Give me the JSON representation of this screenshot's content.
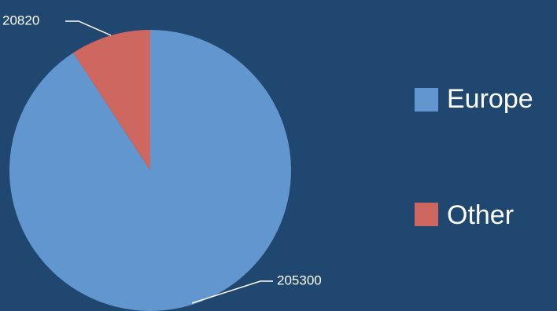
{
  "colors": {
    "background": "#1f4770",
    "europe": "#6196cf",
    "other": "#ce6760"
  },
  "chart_data": {
    "type": "pie",
    "categories": [
      "Europe",
      "Other"
    ],
    "values": [
      205300,
      20820
    ],
    "data_labels": [
      "205300",
      "20820"
    ],
    "legend": {
      "placement": "right",
      "entries": [
        "Europe",
        "Other"
      ]
    },
    "start_angle": "12 o'clock",
    "direction": "clockwise"
  }
}
